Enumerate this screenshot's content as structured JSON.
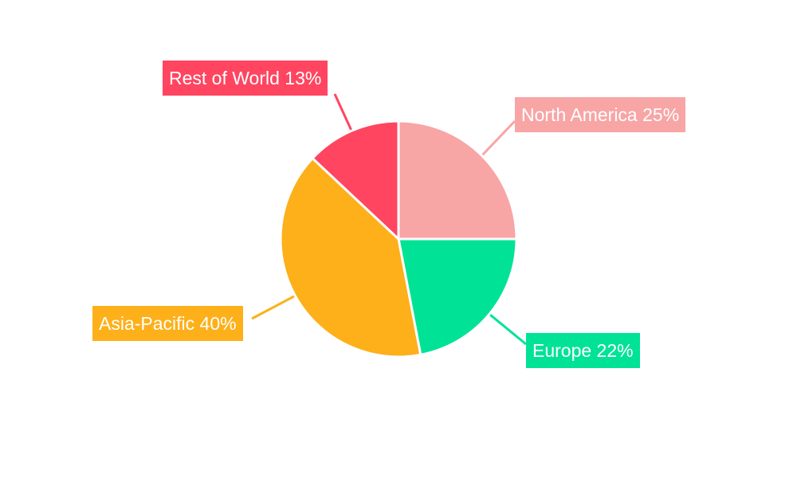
{
  "chart_data": {
    "type": "pie",
    "title": "",
    "start_angle": "top",
    "direction": "clockwise",
    "slices": [
      {
        "name": "North America",
        "value": 25,
        "label": "North America 25%",
        "color": "#F8A5A5"
      },
      {
        "name": "Europe",
        "value": 22,
        "label": "Europe 22%",
        "color": "#00E396"
      },
      {
        "name": "Asia-Pacific",
        "value": 40,
        "label": "Asia-Pacific 40%",
        "color": "#FDB01A"
      },
      {
        "name": "Rest of World",
        "value": 13,
        "label": "Rest of World 13%",
        "color": "#FF4560"
      }
    ]
  }
}
